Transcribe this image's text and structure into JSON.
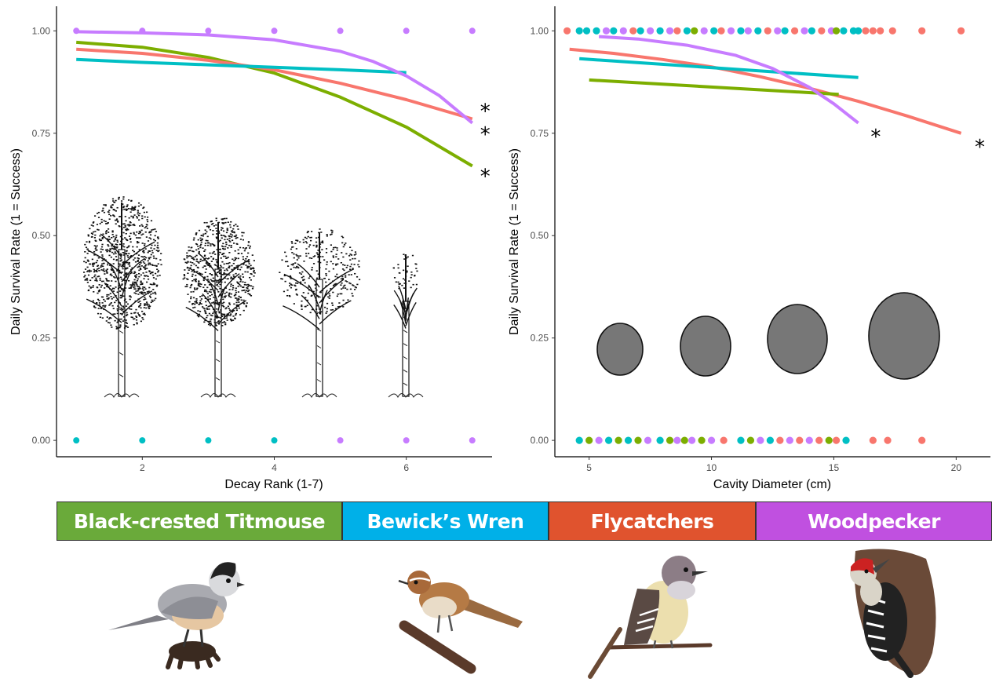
{
  "chart_data": [
    {
      "type": "scatter",
      "xlabel": "Decay Rank (1-7)",
      "ylabel": "Daily Survival Rate (1 = Success)",
      "xlim": [
        0.7,
        7.3
      ],
      "ylim": [
        -0.04,
        1.06
      ],
      "xticks": [
        2,
        4,
        6
      ],
      "yticks": [
        0.0,
        0.25,
        0.5,
        0.75,
        1.0
      ],
      "ytick_labels": [
        "0.00",
        "0.25",
        "0.50",
        "0.75",
        "1.00"
      ],
      "grid": false,
      "points": [
        {
          "x": 1,
          "y": 1,
          "group": "woodpecker"
        },
        {
          "x": 2,
          "y": 1,
          "group": "woodpecker"
        },
        {
          "x": 3,
          "y": 1,
          "group": "woodpecker"
        },
        {
          "x": 4,
          "y": 1,
          "group": "woodpecker"
        },
        {
          "x": 5,
          "y": 1,
          "group": "woodpecker"
        },
        {
          "x": 6,
          "y": 1,
          "group": "woodpecker"
        },
        {
          "x": 7,
          "y": 1,
          "group": "woodpecker"
        },
        {
          "x": 1,
          "y": 0,
          "group": "wren"
        },
        {
          "x": 2,
          "y": 0,
          "group": "wren"
        },
        {
          "x": 3,
          "y": 0,
          "group": "wren"
        },
        {
          "x": 4,
          "y": 0,
          "group": "wren"
        },
        {
          "x": 5,
          "y": 0,
          "group": "woodpecker"
        },
        {
          "x": 6,
          "y": 0,
          "group": "woodpecker"
        },
        {
          "x": 7,
          "y": 0,
          "group": "woodpecker"
        }
      ],
      "series": [
        {
          "group": "titmouse",
          "x": [
            1,
            2,
            3,
            4,
            5,
            6,
            7
          ],
          "y": [
            0.972,
            0.96,
            0.935,
            0.897,
            0.838,
            0.765,
            0.67
          ],
          "significant": true
        },
        {
          "group": "flycatchers",
          "x": [
            1,
            2,
            3,
            4,
            5,
            6,
            7
          ],
          "y": [
            0.955,
            0.945,
            0.928,
            0.905,
            0.872,
            0.832,
            0.785
          ],
          "significant": true
        },
        {
          "group": "wren",
          "x": [
            1,
            2,
            3,
            4,
            5,
            6
          ],
          "y": [
            0.93,
            0.923,
            0.917,
            0.911,
            0.905,
            0.898
          ],
          "significant": false
        },
        {
          "group": "woodpecker",
          "x": [
            1,
            2,
            3,
            4,
            5,
            5.5,
            6,
            6.5,
            7
          ],
          "y": [
            0.998,
            0.995,
            0.99,
            0.978,
            0.95,
            0.925,
            0.89,
            0.842,
            0.775
          ],
          "significant": true
        }
      ],
      "annotations": [
        "*",
        "*",
        "*"
      ]
    },
    {
      "type": "scatter",
      "xlabel": "Cavity Diameter (cm)",
      "ylabel": "Daily Survival Rate (1 = Success)",
      "xlim": [
        3.6,
        21.4
      ],
      "ylim": [
        -0.04,
        1.06
      ],
      "xticks": [
        5,
        10,
        15,
        20
      ],
      "yticks": [
        0.0,
        0.25,
        0.5,
        0.75,
        1.0
      ],
      "ytick_labels": [
        "0.00",
        "0.25",
        "0.50",
        "0.75",
        "1.00"
      ],
      "grid": false,
      "points_top": [
        {
          "x": 4.1,
          "group": "flycatchers"
        },
        {
          "x": 4.6,
          "group": "wren"
        },
        {
          "x": 4.9,
          "group": "wren"
        },
        {
          "x": 5.3,
          "group": "wren"
        },
        {
          "x": 5.7,
          "group": "woodpecker"
        },
        {
          "x": 6.0,
          "group": "wren"
        },
        {
          "x": 6.4,
          "group": "woodpecker"
        },
        {
          "x": 6.8,
          "group": "flycatchers"
        },
        {
          "x": 7.1,
          "group": "wren"
        },
        {
          "x": 7.5,
          "group": "woodpecker"
        },
        {
          "x": 7.9,
          "group": "wren"
        },
        {
          "x": 8.3,
          "group": "woodpecker"
        },
        {
          "x": 8.6,
          "group": "flycatchers"
        },
        {
          "x": 9.0,
          "group": "wren"
        },
        {
          "x": 9.3,
          "group": "titmouse"
        },
        {
          "x": 9.7,
          "group": "woodpecker"
        },
        {
          "x": 10.1,
          "group": "wren"
        },
        {
          "x": 10.4,
          "group": "flycatchers"
        },
        {
          "x": 10.8,
          "group": "woodpecker"
        },
        {
          "x": 11.2,
          "group": "wren"
        },
        {
          "x": 11.5,
          "group": "woodpecker"
        },
        {
          "x": 11.9,
          "group": "wren"
        },
        {
          "x": 12.3,
          "group": "flycatchers"
        },
        {
          "x": 12.7,
          "group": "woodpecker"
        },
        {
          "x": 13.0,
          "group": "wren"
        },
        {
          "x": 13.4,
          "group": "flycatchers"
        },
        {
          "x": 13.8,
          "group": "woodpecker"
        },
        {
          "x": 14.1,
          "group": "wren"
        },
        {
          "x": 14.5,
          "group": "flycatchers"
        },
        {
          "x": 14.9,
          "group": "woodpecker"
        },
        {
          "x": 15.1,
          "group": "titmouse"
        },
        {
          "x": 15.4,
          "group": "wren"
        },
        {
          "x": 15.8,
          "group": "wren"
        },
        {
          "x": 16.0,
          "group": "wren"
        },
        {
          "x": 16.3,
          "group": "flycatchers"
        },
        {
          "x": 16.6,
          "group": "flycatchers"
        },
        {
          "x": 16.9,
          "group": "flycatchers"
        },
        {
          "x": 17.4,
          "group": "flycatchers"
        },
        {
          "x": 18.6,
          "group": "flycatchers"
        },
        {
          "x": 20.2,
          "group": "flycatchers"
        }
      ],
      "points_bottom": [
        {
          "x": 4.6,
          "group": "wren"
        },
        {
          "x": 5.0,
          "group": "titmouse"
        },
        {
          "x": 5.4,
          "group": "woodpecker"
        },
        {
          "x": 5.8,
          "group": "wren"
        },
        {
          "x": 6.2,
          "group": "titmouse"
        },
        {
          "x": 6.6,
          "group": "wren"
        },
        {
          "x": 7.0,
          "group": "titmouse"
        },
        {
          "x": 7.4,
          "group": "woodpecker"
        },
        {
          "x": 7.9,
          "group": "wren"
        },
        {
          "x": 8.3,
          "group": "titmouse"
        },
        {
          "x": 8.6,
          "group": "woodpecker"
        },
        {
          "x": 8.9,
          "group": "titmouse"
        },
        {
          "x": 9.2,
          "group": "woodpecker"
        },
        {
          "x": 9.6,
          "group": "titmouse"
        },
        {
          "x": 10.0,
          "group": "woodpecker"
        },
        {
          "x": 10.5,
          "group": "flycatchers"
        },
        {
          "x": 11.2,
          "group": "wren"
        },
        {
          "x": 11.6,
          "group": "titmouse"
        },
        {
          "x": 12.0,
          "group": "woodpecker"
        },
        {
          "x": 12.4,
          "group": "wren"
        },
        {
          "x": 12.8,
          "group": "flycatchers"
        },
        {
          "x": 13.2,
          "group": "woodpecker"
        },
        {
          "x": 13.6,
          "group": "flycatchers"
        },
        {
          "x": 14.0,
          "group": "woodpecker"
        },
        {
          "x": 14.4,
          "group": "flycatchers"
        },
        {
          "x": 14.8,
          "group": "titmouse"
        },
        {
          "x": 15.1,
          "group": "flycatchers"
        },
        {
          "x": 15.5,
          "group": "wren"
        },
        {
          "x": 16.6,
          "group": "flycatchers"
        },
        {
          "x": 17.2,
          "group": "flycatchers"
        },
        {
          "x": 18.6,
          "group": "flycatchers"
        }
      ],
      "series": [
        {
          "group": "flycatchers",
          "x": [
            4.2,
            6,
            8,
            10,
            12,
            14,
            16,
            18,
            20.2
          ],
          "y": [
            0.955,
            0.945,
            0.93,
            0.912,
            0.888,
            0.86,
            0.828,
            0.792,
            0.75
          ],
          "significant": true
        },
        {
          "group": "wren",
          "x": [
            4.6,
            16
          ],
          "y": [
            0.932,
            0.886
          ],
          "significant": false
        },
        {
          "group": "titmouse",
          "x": [
            5,
            15.2
          ],
          "y": [
            0.88,
            0.845
          ],
          "significant": false
        },
        {
          "group": "woodpecker",
          "x": [
            5.4,
            7,
            9,
            11,
            12.5,
            14,
            15,
            16
          ],
          "y": [
            0.986,
            0.98,
            0.965,
            0.94,
            0.908,
            0.862,
            0.822,
            0.775
          ],
          "significant": true
        }
      ],
      "annotations": [
        "*",
        "*"
      ]
    }
  ],
  "colors": {
    "titmouse": "#7cae00",
    "wren": "#00bfc4",
    "flycatchers": "#f8766d",
    "woodpecker": "#c77cff",
    "legend_titmouse": "#6aaa3a",
    "legend_wren": "#00b0e8",
    "legend_flycatchers": "#e0532e",
    "legend_woodpecker": "#c050e0",
    "cavity_fill": "#777777"
  },
  "legend": [
    {
      "key": "titmouse",
      "label": "Black-crested Titmouse"
    },
    {
      "key": "wren",
      "label": "Bewick’s Wren"
    },
    {
      "key": "flycatchers",
      "label": "Flycatchers"
    },
    {
      "key": "woodpecker",
      "label": "Woodpecker"
    }
  ],
  "illustrations": {
    "trees": [
      "tree-icon",
      "tree-icon",
      "tree-icon",
      "tree-icon"
    ],
    "cavities": [
      "cavity-icon",
      "cavity-icon",
      "cavity-icon",
      "cavity-icon"
    ],
    "birds": [
      "titmouse-icon",
      "wren-icon",
      "flycatcher-icon",
      "woodpecker-icon"
    ]
  }
}
